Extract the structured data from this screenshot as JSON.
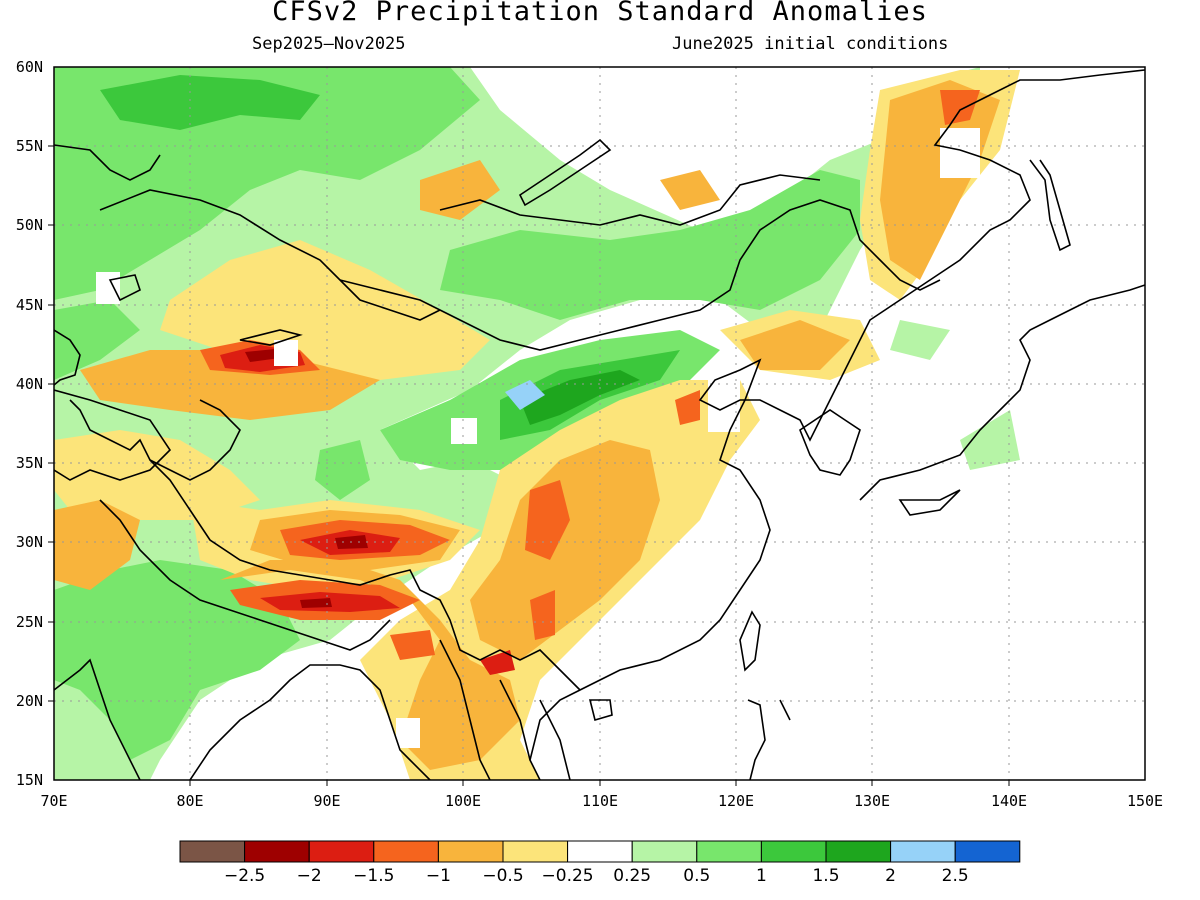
{
  "title": "CFSv2 Precipitation Standard Anomalies",
  "subtitle_left": "Sep2025–Nov2025",
  "subtitle_right": "June2025 initial conditions",
  "map": {
    "lon_range": [
      70,
      150
    ],
    "lat_range": [
      15,
      60
    ],
    "lat_labels": [
      "15N",
      "20N",
      "25N",
      "30N",
      "35N",
      "40N",
      "45N",
      "50N",
      "55N",
      "60N"
    ],
    "lon_labels": [
      "70E",
      "80E",
      "90E",
      "100E",
      "110E",
      "120E",
      "130E",
      "140E",
      "150E"
    ],
    "gridlines": true
  },
  "colorbar": {
    "colors": [
      "#7b5546",
      "#9e0000",
      "#dc1e12",
      "#f5641e",
      "#f8b43c",
      "#fce47a",
      "#ffffff",
      "#b6f4a6",
      "#78e66c",
      "#3cc83c",
      "#1ea61e",
      "#96d2f8",
      "#1464d2"
    ],
    "labels": [
      "−2.5",
      "−2",
      "−1.5",
      "−1",
      "−0.5",
      "−0.25",
      "0.25",
      "0.5",
      "1",
      "1.5",
      "2",
      "2.5"
    ]
  }
}
